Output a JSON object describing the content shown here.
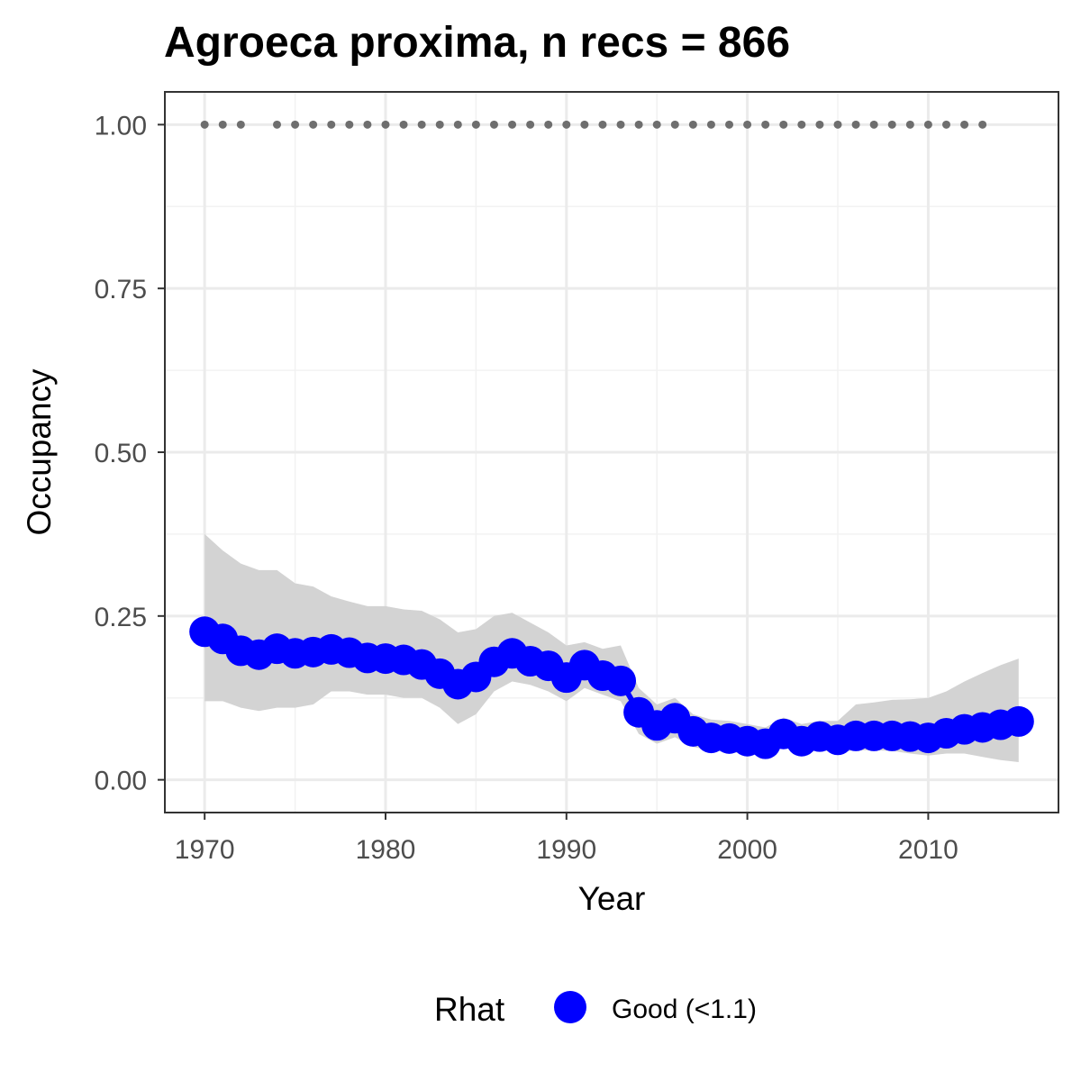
{
  "chart_data": {
    "type": "line",
    "title": "Agroeca proxima, n recs = 866",
    "xlabel": "Year",
    "ylabel": "Occupancy",
    "xlim": [
      1967.8,
      2017.2
    ],
    "ylim": [
      -0.05,
      1.05
    ],
    "x_ticks": [
      1970,
      1980,
      1990,
      2000,
      2010
    ],
    "x_tick_labels": [
      "1970",
      "1980",
      "1990",
      "2000",
      "2010"
    ],
    "y_ticks": [
      0,
      0.25,
      0.5,
      0.75,
      1.0
    ],
    "y_tick_labels": [
      "0.00",
      "0.25",
      "0.50",
      "0.75",
      "1.00"
    ],
    "grid": true,
    "legend": {
      "title": "Rhat",
      "position": "bottom",
      "items": [
        {
          "label": "Good (<1.1)",
          "color": "#0000ff"
        }
      ]
    },
    "colors": {
      "mean": "#0000ff",
      "ribbon": "#d3d3d3",
      "records": "#6e6e6e"
    },
    "series": [
      {
        "type": "line-points",
        "x": [
          1970,
          1971,
          1972,
          1973,
          1974,
          1975,
          1976,
          1977,
          1978,
          1979,
          1980,
          1981,
          1982,
          1983,
          1984,
          1985,
          1986,
          1987,
          1988,
          1989,
          1990,
          1991,
          1992,
          1993,
          1994,
          1995,
          1996,
          1997,
          1998,
          1999,
          2000,
          2001,
          2002,
          2003,
          2004,
          2005,
          2006,
          2007,
          2008,
          2009,
          2010,
          2011,
          2012,
          2013,
          2014,
          2015
        ],
        "values": [
          0.226,
          0.215,
          0.197,
          0.191,
          0.2,
          0.193,
          0.195,
          0.199,
          0.194,
          0.186,
          0.185,
          0.183,
          0.176,
          0.162,
          0.146,
          0.157,
          0.18,
          0.193,
          0.181,
          0.174,
          0.156,
          0.175,
          0.159,
          0.151,
          0.103,
          0.083,
          0.094,
          0.074,
          0.064,
          0.063,
          0.059,
          0.055,
          0.07,
          0.059,
          0.066,
          0.061,
          0.067,
          0.067,
          0.067,
          0.066,
          0.064,
          0.071,
          0.077,
          0.08,
          0.084,
          0.089
        ]
      },
      {
        "type": "ribbon",
        "x": [
          1970,
          1971,
          1972,
          1973,
          1974,
          1975,
          1976,
          1977,
          1978,
          1979,
          1980,
          1981,
          1982,
          1983,
          1984,
          1985,
          1986,
          1987,
          1988,
          1989,
          1990,
          1991,
          1992,
          1993,
          1994,
          1995,
          1996,
          1997,
          1998,
          1999,
          2000,
          2001,
          2002,
          2003,
          2004,
          2005,
          2006,
          2007,
          2008,
          2009,
          2010,
          2011,
          2012,
          2013,
          2014,
          2015
        ],
        "lower": [
          0.12,
          0.12,
          0.11,
          0.105,
          0.11,
          0.11,
          0.115,
          0.135,
          0.135,
          0.13,
          0.13,
          0.125,
          0.125,
          0.11,
          0.085,
          0.1,
          0.135,
          0.15,
          0.145,
          0.135,
          0.12,
          0.14,
          0.13,
          0.12,
          0.07,
          0.055,
          0.065,
          0.05,
          0.045,
          0.042,
          0.04,
          0.038,
          0.05,
          0.04,
          0.045,
          0.042,
          0.045,
          0.045,
          0.044,
          0.04,
          0.037,
          0.04,
          0.04,
          0.035,
          0.03,
          0.027
        ],
        "upper": [
          0.375,
          0.35,
          0.33,
          0.32,
          0.32,
          0.3,
          0.295,
          0.28,
          0.272,
          0.265,
          0.265,
          0.26,
          0.258,
          0.245,
          0.225,
          0.23,
          0.25,
          0.255,
          0.24,
          0.225,
          0.205,
          0.21,
          0.2,
          0.205,
          0.14,
          0.115,
          0.125,
          0.1,
          0.092,
          0.09,
          0.085,
          0.08,
          0.095,
          0.085,
          0.09,
          0.09,
          0.115,
          0.118,
          0.122,
          0.123,
          0.125,
          0.135,
          0.15,
          0.163,
          0.175,
          0.185
        ]
      },
      {
        "type": "records",
        "x": [
          1970,
          1971,
          1972,
          1974,
          1975,
          1976,
          1977,
          1978,
          1979,
          1980,
          1981,
          1982,
          1983,
          1984,
          1985,
          1986,
          1987,
          1988,
          1989,
          1990,
          1991,
          1992,
          1993,
          1994,
          1995,
          1996,
          1997,
          1998,
          1999,
          2000,
          2001,
          2002,
          2003,
          2004,
          2005,
          2006,
          2007,
          2008,
          2009,
          2010,
          2011,
          2012,
          2013
        ],
        "values": [
          1,
          1,
          1,
          1,
          1,
          1,
          1,
          1,
          1,
          1,
          1,
          1,
          1,
          1,
          1,
          1,
          1,
          1,
          1,
          1,
          1,
          1,
          1,
          1,
          1,
          1,
          1,
          1,
          1,
          1,
          1,
          1,
          1,
          1,
          1,
          1,
          1,
          1,
          1,
          1,
          1,
          1,
          1
        ]
      }
    ]
  }
}
